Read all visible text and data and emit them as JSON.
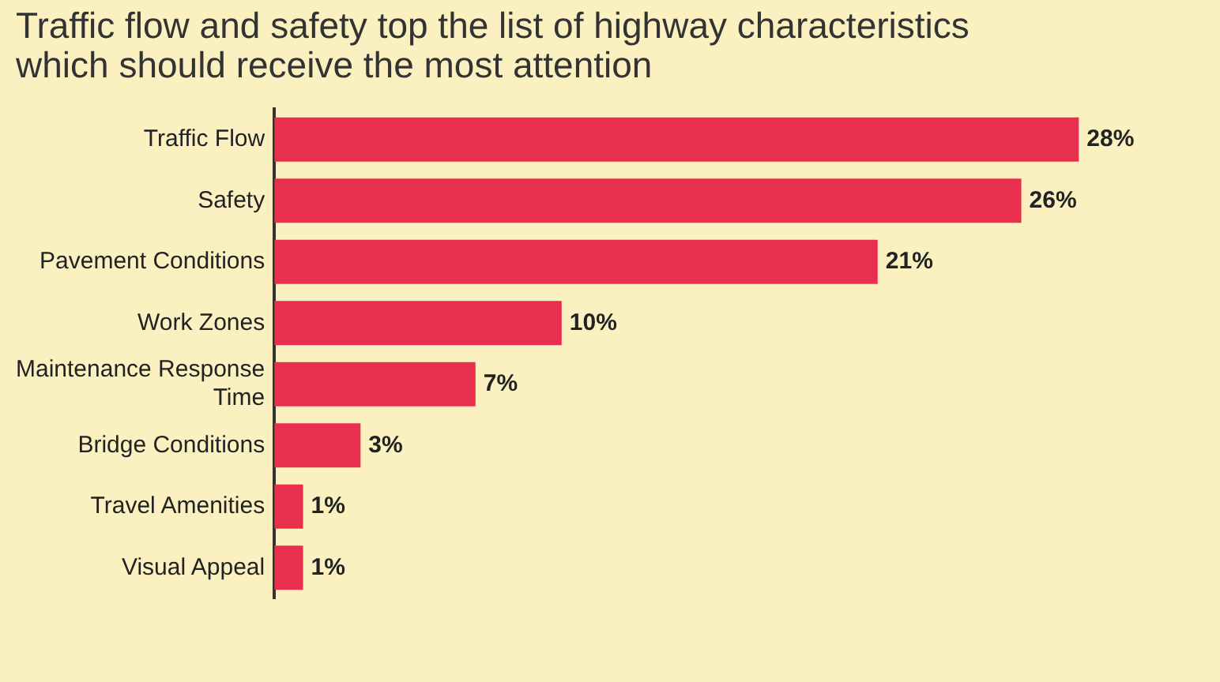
{
  "chart_data": {
    "type": "bar",
    "orientation": "horizontal",
    "title": "Traffic flow and safety top the list of highway characteristics which should receive the most attention",
    "categories": [
      "Traffic Flow",
      "Safety",
      "Pavement Conditions",
      "Work Zones",
      "Maintenance Response Time",
      "Bridge Conditions",
      "Travel Amenities",
      "Visual Appeal"
    ],
    "values": [
      28,
      26,
      21,
      10,
      7,
      3,
      1,
      1
    ],
    "value_labels": [
      "28%",
      "26%",
      "21%",
      "10%",
      "7%",
      "3%",
      "1%",
      "1%"
    ],
    "color": "#e8304e"
  }
}
